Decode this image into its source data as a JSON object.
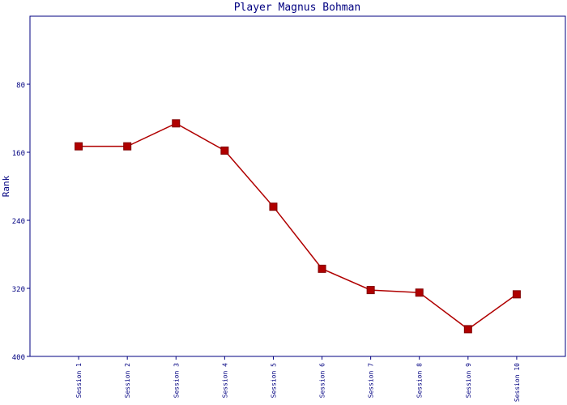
{
  "chart_data": {
    "type": "line",
    "title": "Player Magnus Bohman",
    "y_label": "Rank",
    "categories": [
      "Session 1",
      "Session 2",
      "Session 3",
      "Session 4",
      "Session 5",
      "Session 6",
      "Session 7",
      "Session 8",
      "Session 9",
      "Session 10"
    ],
    "series": [
      {
        "name": "Rank",
        "color": "#b00000",
        "values": [
          153,
          153,
          126,
          158,
          224,
          297,
          322,
          325,
          368,
          327
        ]
      }
    ],
    "ylim": [
      400,
      0
    ],
    "yticks": [
      80,
      160,
      240,
      320,
      400
    ],
    "grid": false
  }
}
